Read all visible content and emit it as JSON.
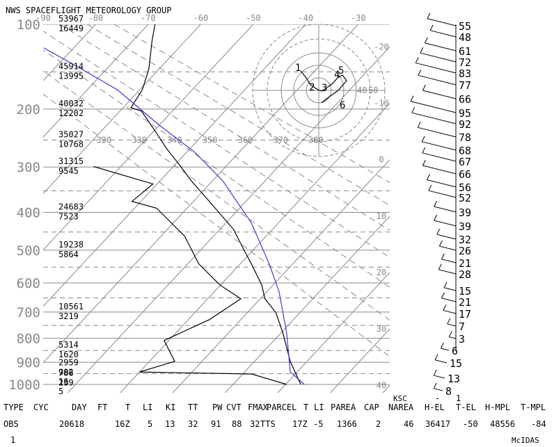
{
  "chart_data": {
    "type": "skewt",
    "title": "NWS SPACEFLIGHT METEOROLOGY GROUP",
    "ylim": [
      100,
      1000
    ],
    "yticks": [
      100,
      200,
      300,
      400,
      500,
      600,
      700,
      800,
      900,
      1000
    ],
    "yticks_minor": [
      150,
      250,
      350,
      450,
      550,
      650,
      750,
      850,
      950
    ],
    "xlim": [
      -90,
      -24
    ],
    "xticks_top": [
      -90,
      -80,
      -70,
      -60,
      -50,
      -40,
      -30
    ],
    "xticks_right": [
      -20,
      -10,
      0,
      10,
      20,
      30,
      40
    ],
    "theta_labels": [
      320,
      330,
      340,
      350,
      360,
      370,
      380
    ],
    "theta_label_pressure": 250,
    "heights": [
      {
        "pressure": 100,
        "feet": 53967,
        "meters": 16449
      },
      {
        "pressure": 150,
        "feet": 45914,
        "meters": 13995
      },
      {
        "pressure": 200,
        "feet": 40032,
        "meters": 12202
      },
      {
        "pressure": 250,
        "feet": 35027,
        "meters": 10768
      },
      {
        "pressure": 300,
        "feet": 31315,
        "meters": 9545
      },
      {
        "pressure": 400,
        "feet": 24683,
        "meters": 7523
      },
      {
        "pressure": 500,
        "feet": 19238,
        "meters": 5864
      },
      {
        "pressure": 700,
        "feet": 10561,
        "meters": 3219
      },
      {
        "pressure": 850,
        "feet": 5314,
        "meters": 1620
      },
      {
        "pressure": 925,
        "feet": 2959,
        "meters": 902
      },
      {
        "pressure": 972,
        "feet": 786,
        "meters": 239
      },
      {
        "pressure": 1013,
        "feet": 16,
        "meters": 5
      }
    ],
    "series": [
      {
        "color": "#000000",
        "pressure": [
          1000,
          896,
          781,
          703,
          653,
          606,
          540,
          500,
          443,
          382,
          328,
          299,
          266,
          236,
          203,
          198,
          173,
          147,
          116,
          100
        ],
        "values": [
          22.9,
          16.8,
          10.5,
          5.5,
          0.9,
          -2.2,
          -7.9,
          -11.7,
          -17.4,
          -25.8,
          -34.1,
          -38.6,
          -44.3,
          -49.5,
          -55.9,
          -58.5,
          -59.5,
          -61.9,
          -66.3,
          -68.7
        ]
      },
      {
        "color": "#000000",
        "pressure": [
          1000,
          952,
          943,
          896,
          809,
          728,
          653,
          606,
          540,
          461,
          390,
          374,
          335,
          299
        ],
        "values": [
          20.2,
          11.7,
          -10,
          -5.2,
          -10.9,
          -6,
          -3.7,
          -10.2,
          -17.9,
          -25.5,
          -35.8,
          -41.7,
          -40.8,
          -55.2
        ]
      },
      {
        "color": "#3a3ad0",
        "pressure": [
          1000,
          943,
          781,
          630,
          540,
          425,
          328,
          272,
          225,
          173,
          147,
          123
        ],
        "values": [
          23.6,
          18.7,
          11.2,
          2.4,
          -4.5,
          -15.3,
          -28.1,
          -38.4,
          -50,
          -64.2,
          -74.6,
          -85.7
        ]
      }
    ],
    "hodograph_labels": [
      "1",
      "2",
      "3",
      "4",
      "5",
      "6"
    ],
    "hodograph_ring_labels": [
      40,
      50
    ],
    "wind_speeds": [
      55,
      48,
      61,
      72,
      83,
      77,
      66,
      95,
      92,
      78,
      68,
      67,
      66,
      56,
      52,
      39,
      39,
      32,
      26,
      21,
      28,
      15,
      21,
      17,
      7,
      3,
      6,
      15,
      13,
      8
    ],
    "station": "KSC",
    "station_marks": [
      "-",
      "1"
    ],
    "table_header": [
      "TYPE",
      "CYC",
      "DAY",
      "FT",
      "T",
      "LI",
      "KI",
      "TT",
      "PW",
      "CVT",
      "FMAX",
      "PARCEL",
      "T",
      "LI",
      "PAREA",
      "CAP",
      "NAREA",
      "H-EL",
      "T-EL",
      "H-MPL",
      "T-MPL"
    ],
    "table_values": [
      "OBS",
      "20618",
      "16Z",
      "5",
      "13",
      "32",
      "91",
      "88",
      "32",
      "TTS",
      "17Z",
      "-5",
      "1366",
      "2",
      "46",
      "36417",
      "-50",
      "48556",
      "-84"
    ],
    "footer_left": "1",
    "footer_right": "McIDAS"
  }
}
